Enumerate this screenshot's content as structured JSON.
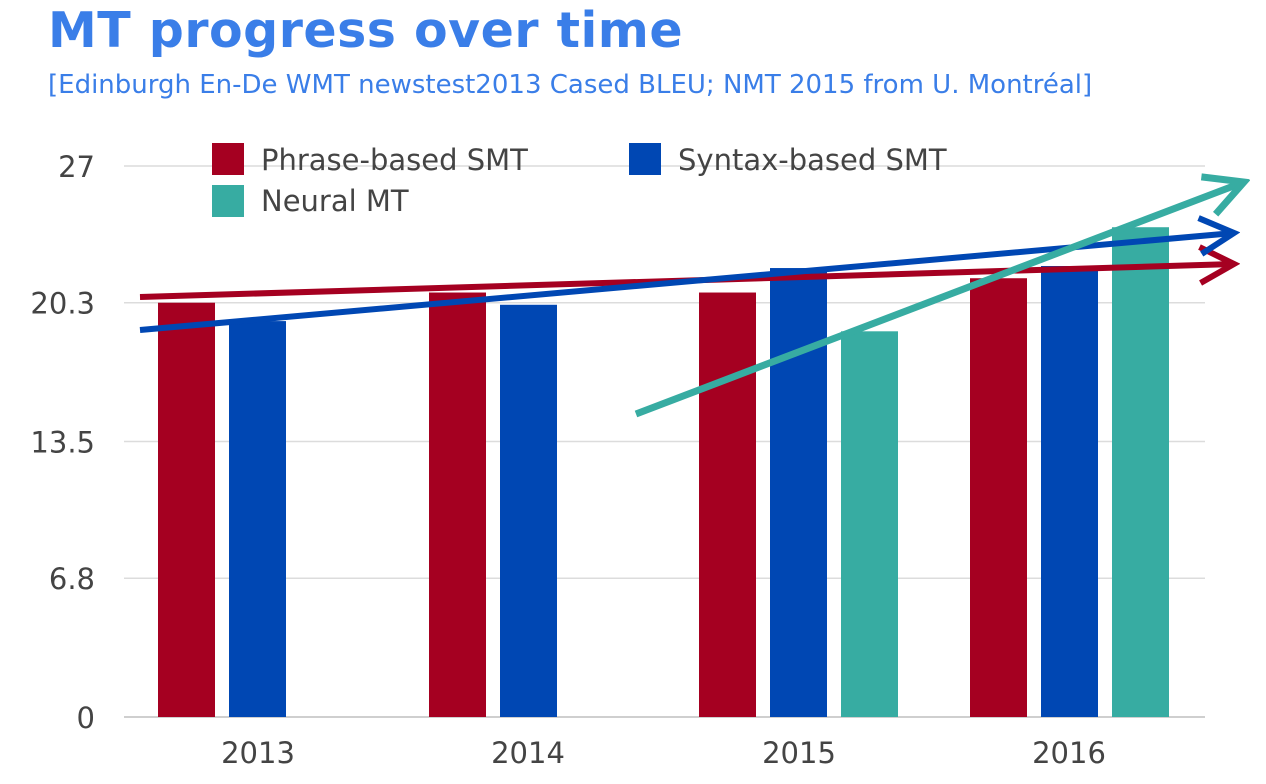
{
  "chart_data": {
    "type": "bar",
    "title": "MT progress over time",
    "subtitle": "[Edinburgh En-De WMT newstest2013 Cased BLEU; NMT 2015 from U. Montréal]",
    "categories": [
      "2013",
      "2014",
      "2015",
      "2016"
    ],
    "series": [
      {
        "name": "Phrase-based SMT",
        "color": "#a50021",
        "values": [
          20.3,
          20.8,
          20.8,
          21.5
        ]
      },
      {
        "name": "Syntax-based SMT",
        "color": "#0047b3",
        "values": [
          19.4,
          20.2,
          22.0,
          22.1
        ]
      },
      {
        "name": "Neural MT",
        "color": "#37aca2",
        "values": [
          null,
          null,
          18.9,
          24.0
        ]
      }
    ],
    "yticks": [
      "0",
      "6.8",
      "13.5",
      "20.3",
      "27"
    ],
    "ylim": [
      0,
      27
    ],
    "xlabel": "",
    "ylabel": "",
    "grid": true,
    "legend_position": "top"
  }
}
